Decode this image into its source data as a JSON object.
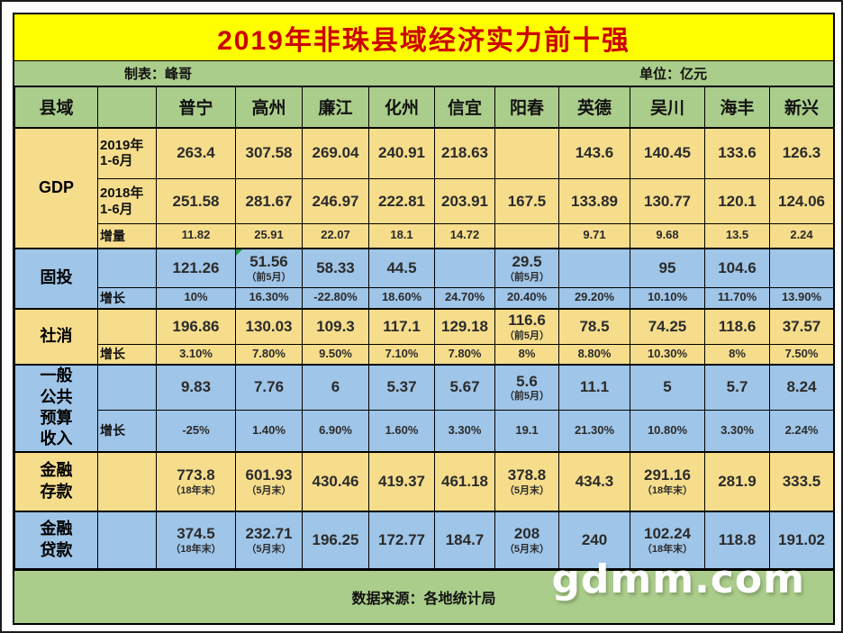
{
  "title": "2019年非珠县域经济实力前十强",
  "meta": {
    "left": "制表：峰哥",
    "right": "单位：亿元"
  },
  "footer": {
    "source": "数据来源：各地统计局",
    "watermark": "gdmm.com"
  },
  "colors": {
    "title_bg": "#ffff00",
    "title_text": "#cc0000",
    "header_green": "#abcd8b",
    "band_yellow": "#f6dd8c",
    "band_blue": "#9fc5e8",
    "flag_green": "#1f9e3f"
  },
  "chart_data": {
    "type": "table",
    "title": "2019年非珠县域经济实力前十强",
    "unit": "亿元",
    "columns": [
      "县域",
      "",
      "普宁",
      "高州",
      "廉江",
      "化州",
      "信宜",
      "阳春",
      "英德",
      "吴川",
      "海丰",
      "新兴"
    ],
    "sections": [
      {
        "label": "GDP",
        "band": "yellow",
        "rows": [
          {
            "sub": "2019年\n1-6月",
            "cells": [
              "263.4",
              "307.58",
              "269.04",
              "240.91",
              "218.63",
              "",
              "143.6",
              "140.45",
              "133.6",
              "126.3"
            ]
          },
          {
            "sub": "2018年\n1-6月",
            "cells": [
              "251.58",
              "281.67",
              "246.97",
              "222.81",
              "203.91",
              "167.5",
              "133.89",
              "130.77",
              "120.1",
              "124.06"
            ]
          },
          {
            "sub": "增量",
            "small": true,
            "cells": [
              "11.82",
              "25.91",
              "22.07",
              "18.1",
              "14.72",
              "",
              "9.71",
              "9.68",
              "13.5",
              "2.24"
            ]
          }
        ]
      },
      {
        "label": "固投",
        "band": "blue",
        "rows": [
          {
            "sub": "",
            "cells": [
              "121.26",
              {
                "v": "51.56",
                "n": "（前5月）",
                "flag": true
              },
              "58.33",
              "44.5",
              "",
              {
                "v": "29.5",
                "n": "（前5月）"
              },
              "",
              "95",
              "104.6",
              ""
            ]
          },
          {
            "sub": "增长",
            "small": true,
            "cells": [
              "10%",
              "16.30%",
              "-22.80%",
              "18.60%",
              "24.70%",
              "20.40%",
              "29.20%",
              "10.10%",
              "11.70%",
              "13.90%"
            ]
          }
        ]
      },
      {
        "label": "社消",
        "band": "yellow",
        "rows": [
          {
            "sub": "",
            "cells": [
              "196.86",
              "130.03",
              "109.3",
              "117.1",
              "129.18",
              {
                "v": "116.6",
                "n": "（前5月）"
              },
              "78.5",
              "74.25",
              "118.6",
              "37.57"
            ]
          },
          {
            "sub": "增长",
            "small": true,
            "cells": [
              "3.10%",
              "7.80%",
              "9.50%",
              "7.10%",
              "7.80%",
              "8%",
              "8.80%",
              "10.30%",
              "8%",
              "7.50%"
            ]
          }
        ]
      },
      {
        "label": "一般\n公共\n预算\n收入",
        "band": "blue",
        "rows": [
          {
            "sub": "",
            "cells": [
              "9.83",
              "7.76",
              "6",
              "5.37",
              "5.67",
              {
                "v": "5.6",
                "n": "（前5月）"
              },
              "11.1",
              "5",
              "5.7",
              "8.24"
            ]
          },
          {
            "sub": "增长",
            "small": true,
            "cells": [
              "-25%",
              "1.40%",
              "6.90%",
              "1.60%",
              "3.30%",
              "19.1",
              "21.30%",
              "10.80%",
              "3.30%",
              "2.24%"
            ]
          }
        ]
      },
      {
        "label": "金融\n存款",
        "band": "yellow",
        "rows": [
          {
            "sub": "",
            "cells": [
              {
                "v": "773.8",
                "n": "（18年末）"
              },
              {
                "v": "601.93",
                "n": "（5月末）"
              },
              "430.46",
              "419.37",
              "461.18",
              {
                "v": "378.8",
                "n": "（5月末）"
              },
              "434.3",
              {
                "v": "291.16",
                "n": "（18年末）"
              },
              "281.9",
              "333.5"
            ]
          }
        ]
      },
      {
        "label": "金融\n贷款",
        "band": "blue",
        "rows": [
          {
            "sub": "",
            "cells": [
              {
                "v": "374.5",
                "n": "（18年末）"
              },
              {
                "v": "232.71",
                "n": "（5月末）"
              },
              "196.25",
              "172.77",
              "184.7",
              {
                "v": "208",
                "n": "（5月末）"
              },
              "240",
              {
                "v": "102.24",
                "n": "（18年末）"
              },
              "118.8",
              "191.02"
            ]
          }
        ]
      }
    ]
  }
}
